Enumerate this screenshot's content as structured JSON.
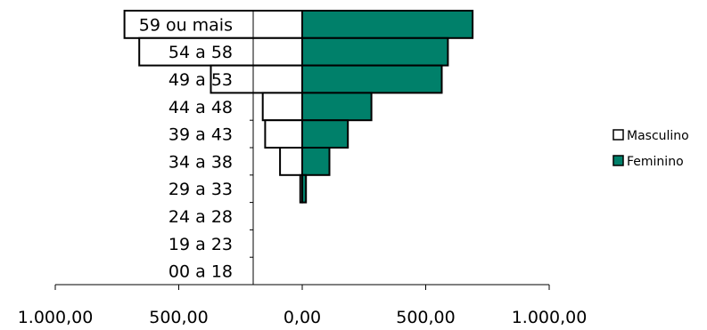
{
  "chart_data": {
    "type": "bar",
    "orientation": "horizontal",
    "layout": "population-pyramid",
    "categories": [
      "59 ou mais",
      "54 a 58",
      "49 a 53",
      "44 a 48",
      "39 a 43",
      "34 a 38",
      "29 a 33",
      "24 a 28",
      "19 a 23",
      "00 a 18"
    ],
    "series": [
      {
        "name": "Masculino",
        "color": "#ffffff",
        "values": [
          720,
          660,
          370,
          160,
          150,
          90,
          8,
          0,
          0,
          0
        ]
      },
      {
        "name": "Feminino",
        "color": "#00806a",
        "values": [
          690,
          590,
          565,
          280,
          185,
          110,
          15,
          0,
          0,
          0
        ]
      }
    ],
    "xlim": [
      -1000,
      1000
    ],
    "xticks": [
      -1000,
      -500,
      0,
      500,
      1000
    ],
    "xtick_labels": [
      "1.000,00",
      "500,00",
      "0,00",
      "500,00",
      "1.000,00"
    ],
    "legend_position": "right",
    "grid": false
  }
}
